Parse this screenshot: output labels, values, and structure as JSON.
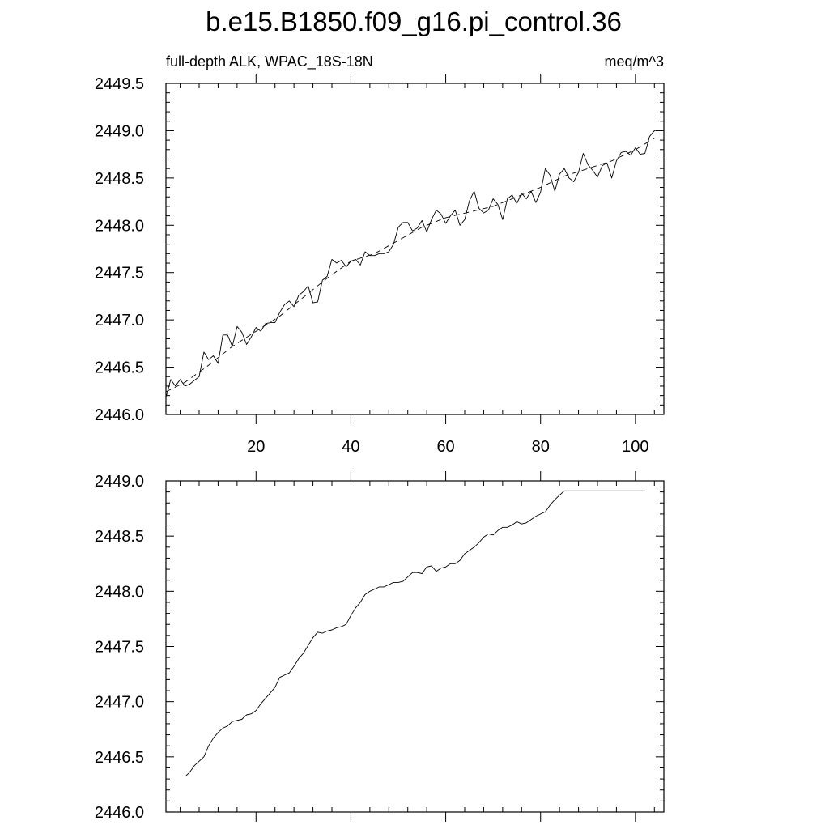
{
  "figure": {
    "title": "b.e15.B1850.f09_g16.pi_control.36"
  },
  "chart_data": [
    {
      "type": "line",
      "title": "",
      "left_label": "full-depth ALK, WPAC_18S-18N",
      "right_label": "meq/m^3",
      "xlabel": "",
      "ylabel": "",
      "xlim": [
        1,
        106
      ],
      "ylim": [
        2446.0,
        2449.5
      ],
      "x_ticks": [
        20,
        40,
        60,
        80,
        100
      ],
      "y_ticks": [
        2446.0,
        2446.5,
        2447.0,
        2447.5,
        2448.0,
        2448.5,
        2449.0,
        2449.5
      ],
      "y_tick_labels": [
        "2446.0",
        "2446.5",
        "2447.0",
        "2447.5",
        "2448.0",
        "2448.5",
        "2449.0",
        "2449.5"
      ],
      "x_tick_labels": [
        "20",
        "40",
        "60",
        "80",
        "100"
      ],
      "grid": false,
      "series": [
        {
          "style": "solid",
          "x": [
            1,
            2,
            3,
            4,
            5,
            6,
            7,
            8,
            9,
            10,
            11,
            12,
            13,
            14,
            15,
            16,
            17,
            18,
            19,
            20,
            21,
            22,
            23,
            24,
            25,
            26,
            27,
            28,
            29,
            30,
            31,
            32,
            33,
            34,
            35,
            36,
            37,
            38,
            39,
            40,
            41,
            42,
            43,
            44,
            45,
            46,
            47,
            48,
            49,
            50,
            51,
            52,
            53,
            54,
            55,
            56,
            57,
            58,
            59,
            60,
            61,
            62,
            63,
            64,
            65,
            66,
            67,
            68,
            69,
            70,
            71,
            72,
            73,
            74,
            75,
            76,
            77,
            78,
            79,
            80,
            81,
            82,
            83,
            84,
            85,
            86,
            87,
            88,
            89,
            90,
            91,
            92,
            93,
            94,
            95,
            96,
            97,
            98,
            99,
            100,
            101,
            102,
            103,
            104,
            105
          ],
          "y": [
            2446.18,
            2446.37,
            2446.3,
            2446.37,
            2446.3,
            2446.32,
            2446.36,
            2446.4,
            2446.66,
            2446.58,
            2446.62,
            2446.54,
            2446.84,
            2446.84,
            2446.72,
            2446.93,
            2446.87,
            2446.74,
            2446.82,
            2446.92,
            2446.88,
            2446.96,
            2446.97,
            2446.97,
            2447.08,
            2447.16,
            2447.2,
            2447.14,
            2447.26,
            2447.3,
            2447.36,
            2447.18,
            2447.19,
            2447.42,
            2447.46,
            2447.64,
            2447.6,
            2447.63,
            2447.56,
            2447.62,
            2447.64,
            2447.58,
            2447.72,
            2447.68,
            2447.68,
            2447.7,
            2447.7,
            2447.72,
            2447.8,
            2447.98,
            2448.03,
            2448.03,
            2447.94,
            2447.97,
            2448.05,
            2447.93,
            2448.06,
            2448.16,
            2448.12,
            2448.02,
            2448.1,
            2448.16,
            2448.0,
            2448.06,
            2448.26,
            2448.36,
            2448.18,
            2448.13,
            2448.16,
            2448.28,
            2448.22,
            2448.06,
            2448.28,
            2448.32,
            2448.23,
            2448.34,
            2448.28,
            2448.36,
            2448.24,
            2448.35,
            2448.6,
            2448.53,
            2448.36,
            2448.54,
            2448.6,
            2448.5,
            2448.46,
            2448.56,
            2448.76,
            2448.64,
            2448.58,
            2448.51,
            2448.63,
            2448.66,
            2448.5,
            2448.68,
            2448.77,
            2448.78,
            2448.74,
            2448.82,
            2448.75,
            2448.76,
            2448.94,
            2449.0,
            2449.01
          ]
        },
        {
          "style": "dashed",
          "x": [
            1,
            5,
            10,
            15,
            20,
            25,
            30,
            35,
            40,
            45,
            50,
            55,
            60,
            65,
            70,
            75,
            80,
            85,
            90,
            95,
            100,
            104
          ],
          "y": [
            2446.24,
            2446.34,
            2446.52,
            2446.72,
            2446.88,
            2447.04,
            2447.24,
            2447.44,
            2447.62,
            2447.7,
            2447.84,
            2447.98,
            2448.08,
            2448.14,
            2448.2,
            2448.3,
            2448.4,
            2448.52,
            2448.6,
            2448.68,
            2448.8,
            2448.92
          ]
        }
      ]
    },
    {
      "type": "line",
      "title": "",
      "xlabel": "",
      "ylabel": "",
      "xlim": [
        1,
        106
      ],
      "ylim": [
        2446.0,
        2449.0
      ],
      "x_ticks": [
        20,
        40,
        60,
        80,
        100
      ],
      "y_ticks": [
        2446.0,
        2446.5,
        2447.0,
        2447.5,
        2448.0,
        2448.5,
        2449.0
      ],
      "y_tick_labels": [
        "2446.0",
        "2446.5",
        "2447.0",
        "2447.5",
        "2448.0",
        "2448.5",
        "2449.0"
      ],
      "grid": false,
      "series": [
        {
          "style": "solid",
          "x": [
            5,
            6,
            7,
            8,
            9,
            10,
            11,
            12,
            13,
            14,
            15,
            16,
            17,
            18,
            19,
            20,
            21,
            22,
            23,
            24,
            25,
            26,
            27,
            28,
            29,
            30,
            31,
            32,
            33,
            34,
            35,
            36,
            37,
            38,
            39,
            40,
            41,
            42,
            43,
            44,
            45,
            46,
            47,
            48,
            49,
            50,
            51,
            52,
            53,
            54,
            55,
            56,
            57,
            58,
            59,
            60,
            61,
            62,
            63,
            64,
            65,
            66,
            67,
            68,
            69,
            70,
            71,
            72,
            73,
            74,
            75,
            76,
            77,
            78,
            79,
            80,
            81,
            82,
            83,
            84,
            85,
            86,
            87,
            88,
            89,
            90,
            91,
            92,
            93,
            94,
            95,
            96,
            97,
            98,
            99,
            100,
            101,
            102,
            103
          ],
          "y": [
            2446.32,
            2446.36,
            2446.42,
            2446.46,
            2446.5,
            2446.6,
            2446.67,
            2446.72,
            2446.76,
            2446.78,
            2446.82,
            2446.83,
            2446.84,
            2446.88,
            2446.89,
            2446.92,
            2446.98,
            2447.03,
            2447.08,
            2447.13,
            2447.22,
            2447.24,
            2447.26,
            2447.32,
            2447.39,
            2447.44,
            2447.51,
            2447.58,
            2447.63,
            2447.62,
            2447.64,
            2447.65,
            2447.67,
            2447.68,
            2447.7,
            2447.78,
            2447.85,
            2447.9,
            2447.97,
            2448.0,
            2448.02,
            2448.04,
            2448.04,
            2448.06,
            2448.08,
            2448.08,
            2448.09,
            2448.13,
            2448.17,
            2448.17,
            2448.16,
            2448.22,
            2448.23,
            2448.18,
            2448.21,
            2448.22,
            2448.25,
            2448.25,
            2448.28,
            2448.34,
            2448.37,
            2448.4,
            2448.44,
            2448.49,
            2448.52,
            2448.51,
            2448.55,
            2448.58,
            2448.58,
            2448.6,
            2448.63,
            2448.61,
            2448.62,
            2448.65,
            2448.68,
            2448.7,
            2448.72,
            2448.78,
            2448.83,
            2448.87,
            2448.91,
            2448.91,
            2448.91,
            2448.91,
            2448.91,
            2448.91,
            2448.91,
            2448.91,
            2448.91,
            2448.91,
            2448.91,
            2448.91,
            2448.91,
            2448.91,
            2448.91,
            2448.91,
            2448.91,
            2448.91,
            2448.91
          ]
        }
      ]
    }
  ]
}
